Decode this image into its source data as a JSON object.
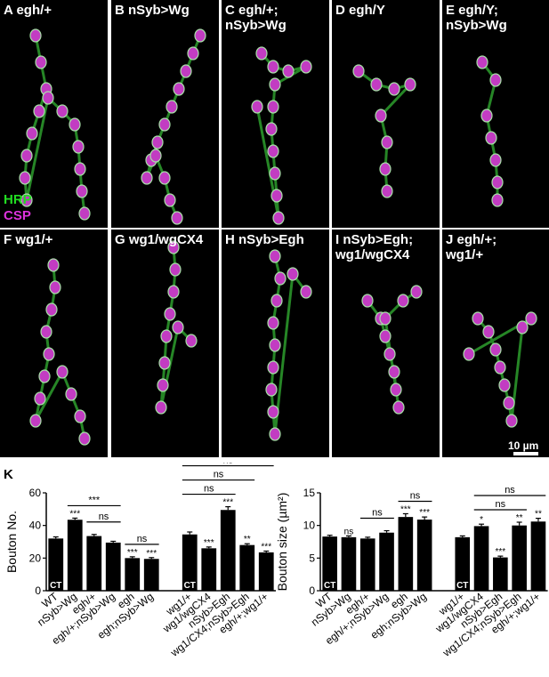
{
  "panels": [
    {
      "letter": "A",
      "line1": "egh/+",
      "line2": ""
    },
    {
      "letter": "B",
      "line1": "nSyb>Wg",
      "line2": ""
    },
    {
      "letter": "C",
      "line1": "egh/+;",
      "line2": "nSyb>Wg"
    },
    {
      "letter": "D",
      "line1": "egh/Y",
      "line2": ""
    },
    {
      "letter": "E",
      "line1": "egh/Y;",
      "line2": "nSyb>Wg"
    },
    {
      "letter": "F",
      "line1": "wg1/+",
      "line2": ""
    },
    {
      "letter": "G",
      "line1": "wg1/wgCX4",
      "line2": ""
    },
    {
      "letter": "H",
      "line1": "nSyb>Egh",
      "line2": ""
    },
    {
      "letter": "I",
      "line1": "nSyb>Egh;",
      "line2": "wg1/wgCX4"
    },
    {
      "letter": "J",
      "line1": "egh/+;",
      "line2": "wg1/+"
    }
  ],
  "stain_labels": {
    "hrp": "HRP",
    "csp": "CSP",
    "hrp_color": "#22dd22",
    "csp_color": "#dd33dd"
  },
  "scale_bar": "10 µm",
  "panel_k_label": "K",
  "ct_label": "CT",
  "chart_data": [
    {
      "type": "bar",
      "ylabel": "Bouton No.",
      "ylim": [
        0,
        60
      ],
      "yticks": [
        0,
        20,
        40,
        60
      ],
      "categories": [
        "WT",
        "nSyb>Wg",
        "egh/+",
        "egh/+;nSyb>Wg",
        "egh",
        "egh;nSyb>Wg",
        "wg1/+",
        "wg1/wgCX4",
        "nSyb>Egh",
        "wg1/CX4;nSyb>Egh",
        "egh/+;wg1/+"
      ],
      "values": [
        32,
        43.5,
        33.5,
        29.5,
        20,
        19.5,
        34.5,
        26,
        49.5,
        28,
        23.5
      ],
      "errors": [
        1,
        1,
        1,
        0.8,
        0.8,
        0.8,
        1.5,
        0.8,
        2,
        0.8,
        0.8
      ],
      "significance": [
        "",
        "***",
        "",
        "",
        "***",
        "***",
        "",
        "***",
        "***",
        "**",
        "***"
      ],
      "comparisons": [
        {
          "from": 1,
          "to": 3,
          "label": "***"
        },
        {
          "from": 2,
          "to": 3,
          "label": "ns"
        },
        {
          "from": 4,
          "to": 5,
          "label": "ns"
        },
        {
          "from": 6,
          "to": 8,
          "label": "ns"
        },
        {
          "from": 6,
          "to": 9,
          "label": "ns"
        },
        {
          "from": 6,
          "to": 10,
          "label": "ns"
        }
      ]
    },
    {
      "type": "bar",
      "ylabel": "Bouton size (µm²)",
      "ylim": [
        0,
        15
      ],
      "yticks": [
        0,
        5,
        10,
        15
      ],
      "categories": [
        "WT",
        "nSyb>Wg",
        "egh/+",
        "egh/+;nSyb>Wg",
        "egh",
        "egh;nSyb>Wg",
        "wg1/+",
        "wg1/wgCX4",
        "nSyb>Egh",
        "wg1/CX4;nSyb>Egh",
        "egh/+;wg1/+"
      ],
      "values": [
        8.3,
        8.2,
        8.0,
        8.9,
        11.3,
        10.9,
        8.2,
        9.9,
        5.1,
        10.0,
        10.6
      ],
      "errors": [
        0.2,
        0.2,
        0.2,
        0.3,
        0.5,
        0.4,
        0.2,
        0.3,
        0.2,
        0.5,
        0.5
      ],
      "significance": [
        "",
        "ns",
        "",
        "",
        "***",
        "***",
        "",
        "*",
        "***",
        "**",
        "**"
      ],
      "comparisons": [
        {
          "from": 2,
          "to": 3,
          "label": "ns"
        },
        {
          "from": 4,
          "to": 5,
          "label": "ns"
        },
        {
          "from": 7,
          "to": 9,
          "label": "ns"
        },
        {
          "from": 7,
          "to": 10,
          "label": "ns"
        }
      ]
    }
  ]
}
